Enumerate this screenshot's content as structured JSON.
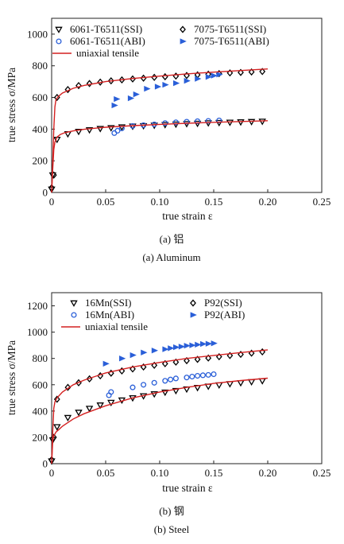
{
  "chart_data": [
    {
      "type": "scatter",
      "xlabel": "true strain ε",
      "ylabel": "true stress σ/MPa",
      "xlim": [
        0,
        0.25
      ],
      "ylim": [
        0,
        1100
      ],
      "xticks": [
        "0",
        "0.05",
        "0.10",
        "0.15",
        "0.20",
        "0.25"
      ],
      "yticks": [
        "0",
        "200",
        "400",
        "600",
        "800",
        "1000"
      ],
      "xtick_values": [
        0,
        0.05,
        0.1,
        0.15,
        0.2,
        0.25
      ],
      "ytick_values": [
        0,
        200,
        400,
        600,
        800,
        1000
      ],
      "caption_cn": "(a) 铝",
      "caption_en": "(a) Aluminum",
      "legend": [
        {
          "label": "6061-T6511(SSI)",
          "marker": "triangle-down",
          "color": "#000000"
        },
        {
          "label": "7075-T6511(SSI)",
          "marker": "diamond",
          "color": "#000000"
        },
        {
          "label": "6061-T6511(ABI)",
          "marker": "circle",
          "color": "#2a5fd8"
        },
        {
          "label": "7075-T6511(ABI)",
          "marker": "triangle-right",
          "color": "#2a5fd8"
        },
        {
          "label": "uniaxial tensile",
          "marker": "line",
          "color": "#d42020"
        }
      ],
      "series": [
        {
          "name": "6061-T6511(SSI)",
          "marker": "triangle-down",
          "color": "#000000",
          "x": [
            0.0,
            0.001,
            0.005,
            0.015,
            0.025,
            0.035,
            0.045,
            0.055,
            0.065,
            0.075,
            0.085,
            0.095,
            0.105,
            0.115,
            0.125,
            0.135,
            0.145,
            0.155,
            0.165,
            0.175,
            0.185,
            0.195
          ],
          "y": [
            20,
            110,
            335,
            370,
            385,
            395,
            403,
            408,
            413,
            418,
            421,
            424,
            428,
            431,
            434,
            436,
            439,
            441,
            443,
            445,
            447,
            449
          ]
        },
        {
          "name": "7075-T6511(SSI)",
          "marker": "diamond",
          "color": "#000000",
          "x": [
            0.0,
            0.002,
            0.005,
            0.015,
            0.025,
            0.035,
            0.045,
            0.055,
            0.065,
            0.075,
            0.085,
            0.095,
            0.105,
            0.115,
            0.125,
            0.135,
            0.145,
            0.155,
            0.165,
            0.175,
            0.185,
            0.195
          ],
          "y": [
            30,
            110,
            600,
            650,
            675,
            688,
            697,
            705,
            711,
            717,
            722,
            727,
            731,
            735,
            739,
            743,
            747,
            751,
            755,
            758,
            761,
            764
          ]
        },
        {
          "name": "6061-T6511(ABI)",
          "marker": "circle",
          "color": "#2a5fd8",
          "x": [
            0.058,
            0.061,
            0.065,
            0.075,
            0.085,
            0.095,
            0.105,
            0.115,
            0.125,
            0.135,
            0.145,
            0.155
          ],
          "y": [
            375,
            390,
            405,
            420,
            425,
            430,
            438,
            443,
            447,
            450,
            452,
            455
          ]
        },
        {
          "name": "7075-T6511(ABI)",
          "marker": "triangle-right",
          "color": "#2a5fd8",
          "x": [
            0.058,
            0.06,
            0.073,
            0.078,
            0.088,
            0.098,
            0.105,
            0.115,
            0.125,
            0.135,
            0.145,
            0.15,
            0.155
          ],
          "y": [
            550,
            590,
            595,
            620,
            655,
            668,
            680,
            690,
            705,
            718,
            730,
            738,
            745
          ]
        },
        {
          "name": "uniaxial tensile (6061-T6511)",
          "marker": "line",
          "color": "#d42020",
          "x": [
            0,
            0.001,
            0.002,
            0.003,
            0.005,
            0.008,
            0.012,
            0.02,
            0.03,
            0.05,
            0.075,
            0.1,
            0.125,
            0.15,
            0.175,
            0.2
          ],
          "y": [
            0,
            150,
            270,
            318,
            350,
            366,
            377,
            389,
            399,
            412,
            422,
            430,
            437,
            443,
            448,
            453
          ]
        },
        {
          "name": "uniaxial tensile (7075-T6511)",
          "marker": "line",
          "color": "#d42020",
          "x": [
            0,
            0.001,
            0.002,
            0.003,
            0.004,
            0.006,
            0.01,
            0.02,
            0.03,
            0.05,
            0.075,
            0.1,
            0.125,
            0.15,
            0.175,
            0.2
          ],
          "y": [
            0,
            200,
            400,
            540,
            585,
            605,
            628,
            658,
            676,
            700,
            720,
            735,
            749,
            760,
            770,
            780
          ]
        }
      ]
    },
    {
      "type": "scatter",
      "xlabel": "true strain ε",
      "ylabel": "true stress σ/MPa",
      "xlim": [
        0,
        0.25
      ],
      "ylim": [
        0,
        1300
      ],
      "xticks": [
        "0",
        "0.05",
        "0.10",
        "0.15",
        "0.20",
        "0.25"
      ],
      "yticks": [
        "0",
        "200",
        "400",
        "600",
        "800",
        "1000",
        "1200"
      ],
      "xtick_values": [
        0,
        0.05,
        0.1,
        0.15,
        0.2,
        0.25
      ],
      "ytick_values": [
        0,
        200,
        400,
        600,
        800,
        1000,
        1200
      ],
      "caption_cn": "(b) 钢",
      "caption_en": "(b) Steel",
      "legend": [
        {
          "label": "16Mn(SSI)",
          "marker": "triangle-down",
          "color": "#000000"
        },
        {
          "label": "P92(SSI)",
          "marker": "diamond",
          "color": "#000000"
        },
        {
          "label": "16Mn(ABI)",
          "marker": "circle",
          "color": "#2a5fd8"
        },
        {
          "label": "P92(ABI)",
          "marker": "triangle-right",
          "color": "#2a5fd8"
        },
        {
          "label": "uniaxial tensile",
          "marker": "line",
          "color": "#d42020"
        }
      ],
      "series": [
        {
          "name": "16Mn(SSI)",
          "marker": "triangle-down",
          "color": "#000000",
          "x": [
            0.0,
            0.001,
            0.005,
            0.015,
            0.025,
            0.035,
            0.045,
            0.055,
            0.065,
            0.075,
            0.085,
            0.095,
            0.105,
            0.115,
            0.125,
            0.135,
            0.145,
            0.155,
            0.165,
            0.175,
            0.185,
            0.195
          ],
          "y": [
            20,
            180,
            280,
            350,
            390,
            420,
            445,
            465,
            483,
            500,
            515,
            530,
            543,
            555,
            567,
            578,
            588,
            598,
            607,
            615,
            622,
            630
          ]
        },
        {
          "name": "P92(SSI)",
          "marker": "diamond",
          "color": "#000000",
          "x": [
            0.0,
            0.002,
            0.005,
            0.015,
            0.025,
            0.035,
            0.045,
            0.055,
            0.065,
            0.075,
            0.085,
            0.095,
            0.105,
            0.115,
            0.125,
            0.135,
            0.145,
            0.155,
            0.165,
            0.175,
            0.185,
            0.195
          ],
          "y": [
            30,
            200,
            490,
            580,
            615,
            645,
            668,
            688,
            705,
            720,
            735,
            748,
            760,
            772,
            783,
            793,
            803,
            813,
            822,
            831,
            840,
            850
          ]
        },
        {
          "name": "16Mn(ABI)",
          "marker": "circle",
          "color": "#2a5fd8",
          "x": [
            0.053,
            0.055,
            0.075,
            0.085,
            0.095,
            0.105,
            0.11,
            0.115,
            0.125,
            0.13,
            0.135,
            0.14,
            0.145,
            0.15
          ],
          "y": [
            520,
            545,
            580,
            600,
            615,
            630,
            640,
            648,
            655,
            662,
            668,
            672,
            675,
            680
          ]
        },
        {
          "name": "P92(ABI)",
          "marker": "triangle-right",
          "color": "#2a5fd8",
          "x": [
            0.05,
            0.065,
            0.075,
            0.085,
            0.095,
            0.105,
            0.11,
            0.115,
            0.12,
            0.125,
            0.13,
            0.135,
            0.14,
            0.145,
            0.15
          ],
          "y": [
            760,
            800,
            825,
            845,
            860,
            870,
            878,
            885,
            890,
            897,
            900,
            905,
            910,
            912,
            915
          ]
        },
        {
          "name": "uniaxial tensile (16Mn)",
          "marker": "line",
          "color": "#d42020",
          "x": [
            0,
            0.001,
            0.002,
            0.004,
            0.007,
            0.01,
            0.02,
            0.03,
            0.05,
            0.075,
            0.1,
            0.125,
            0.15,
            0.175,
            0.2
          ],
          "y": [
            0,
            180,
            210,
            240,
            262,
            285,
            340,
            380,
            440,
            500,
            545,
            580,
            610,
            632,
            650
          ]
        },
        {
          "name": "uniaxial tensile (P92)",
          "marker": "line",
          "color": "#d42020",
          "x": [
            0,
            0.001,
            0.002,
            0.003,
            0.005,
            0.01,
            0.02,
            0.03,
            0.05,
            0.075,
            0.1,
            0.125,
            0.15,
            0.175,
            0.2
          ],
          "y": [
            0,
            250,
            420,
            470,
            500,
            545,
            600,
            635,
            690,
            735,
            770,
            800,
            823,
            845,
            865
          ]
        }
      ]
    }
  ]
}
